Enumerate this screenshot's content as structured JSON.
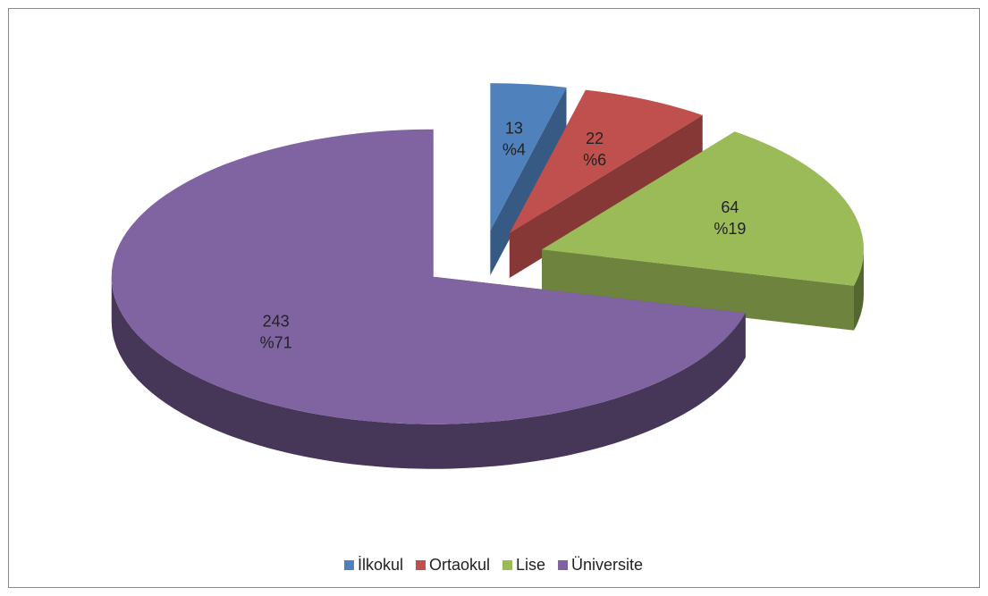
{
  "chart_data": {
    "type": "pie3d",
    "categories": [
      "İlkokul",
      "Ortaokul",
      "Lise",
      "Üniversite"
    ],
    "values": [
      13,
      22,
      64,
      243
    ],
    "percents": [
      4,
      6,
      19,
      71
    ],
    "percent_labels": [
      "%4",
      "%6",
      "%19",
      "%71"
    ],
    "colors": [
      "#4f81bd",
      "#c0504d",
      "#9bbb59",
      "#8064a2"
    ],
    "legend": "bottom"
  }
}
